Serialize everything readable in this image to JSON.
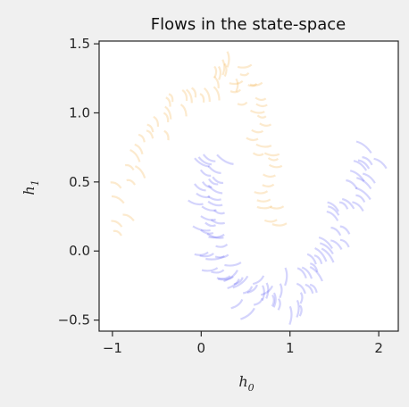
{
  "chart_data": {
    "type": "line",
    "title": "Flows in the state-space",
    "xlabel": "h",
    "xlabel_sub": "0",
    "ylabel": "h",
    "ylabel_sub": "1",
    "xlim": [
      -1.15,
      2.22
    ],
    "ylim": [
      -0.58,
      1.52
    ],
    "x_ticks": [
      -1,
      0,
      1,
      2
    ],
    "x_tick_labels": [
      "−1",
      "0",
      "1",
      "2"
    ],
    "y_ticks": [
      -0.5,
      0.0,
      0.5,
      1.0,
      1.5
    ],
    "y_tick_labels": [
      "−0.5",
      "0.0",
      "0.5",
      "1.0",
      "1.5"
    ],
    "grid": false,
    "series": [
      {
        "color": "#f0a020",
        "flow_count": 60,
        "flow_length": 0.13,
        "centerline": [
          [
            -0.97,
            0.1
          ],
          [
            -0.8,
            0.62
          ],
          [
            -0.5,
            0.9
          ],
          [
            -0.2,
            1.07
          ],
          [
            0.15,
            1.25
          ],
          [
            0.4,
            1.3
          ],
          [
            0.55,
            1.1
          ],
          [
            0.65,
            0.8
          ],
          [
            0.75,
            0.5
          ],
          [
            0.92,
            0.2
          ]
        ],
        "band_width": 0.26
      },
      {
        "color": "#3b3bf0",
        "flow_count": 90,
        "flow_length": 0.16,
        "centerline": [
          [
            0.15,
            0.7
          ],
          [
            0.05,
            0.42
          ],
          [
            0.08,
            0.1
          ],
          [
            0.3,
            -0.2
          ],
          [
            0.7,
            -0.38
          ],
          [
            1.15,
            -0.3
          ],
          [
            1.45,
            0.0
          ],
          [
            1.7,
            0.38
          ],
          [
            1.92,
            0.75
          ]
        ],
        "band_width": 0.3
      }
    ]
  }
}
